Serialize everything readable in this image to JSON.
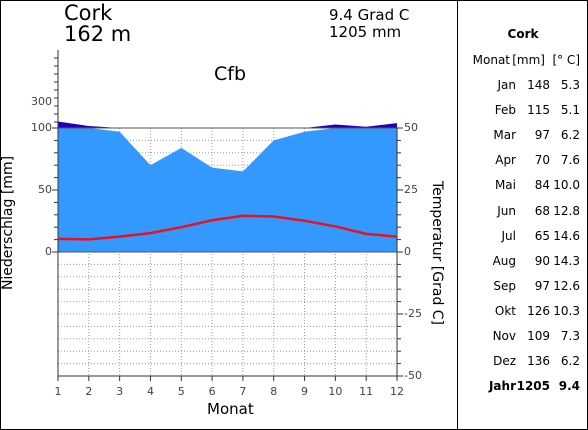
{
  "header": {
    "station": "Cork",
    "elevation": "162 m",
    "mean_temp": "9.4 Grad C",
    "annual_precip": "1205 mm",
    "koppen": "Cfb"
  },
  "chart_data": {
    "type": "line",
    "title": "Cork",
    "xlabel": "Monat",
    "ylabel_left": "Niederschlag [mm]",
    "ylabel_right": "Temperatur [Grad C]",
    "x": [
      1,
      2,
      3,
      4,
      5,
      6,
      7,
      8,
      9,
      10,
      11,
      12
    ],
    "x_ticks": [
      "1",
      "2",
      "3",
      "4",
      "5",
      "6",
      "7",
      "8",
      "9",
      "10",
      "11",
      "12"
    ],
    "precip_ticks": [
      "300",
      "100",
      "50",
      "0"
    ],
    "temp_ticks": [
      "50",
      "25",
      "0",
      "-25",
      "-50"
    ],
    "grid": true,
    "series": [
      {
        "name": "Niederschlag",
        "unit": "mm",
        "values": [
          148,
          115,
          97,
          70,
          84,
          68,
          65,
          90,
          97,
          126,
          109,
          136
        ]
      },
      {
        "name": "Temperatur",
        "unit": "°C",
        "values": [
          5.3,
          5.1,
          6.2,
          7.6,
          10.0,
          12.8,
          14.6,
          14.3,
          12.6,
          10.3,
          7.3,
          6.2
        ]
      }
    ],
    "colors": {
      "precip_fill": "#3399ff",
      "precip_excess": "#1f00b8",
      "temp_line": "#e8121a",
      "grid": "#888888"
    }
  },
  "table": {
    "title": "Cork",
    "headers": [
      "Monat",
      "[mm]",
      "[° C]"
    ],
    "rows": [
      [
        "Jan",
        "148",
        "5.3"
      ],
      [
        "Feb",
        "115",
        "5.1"
      ],
      [
        "Mar",
        "97",
        "6.2"
      ],
      [
        "Apr",
        "70",
        "7.6"
      ],
      [
        "Mai",
        "84",
        "10.0"
      ],
      [
        "Jun",
        "68",
        "12.8"
      ],
      [
        "Jul",
        "65",
        "14.6"
      ],
      [
        "Aug",
        "90",
        "14.3"
      ],
      [
        "Sep",
        "97",
        "12.6"
      ],
      [
        "Okt",
        "126",
        "10.3"
      ],
      [
        "Nov",
        "109",
        "7.3"
      ],
      [
        "Dez",
        "136",
        "6.2"
      ]
    ],
    "total": [
      "Jahr",
      "1205",
      "9.4"
    ]
  }
}
